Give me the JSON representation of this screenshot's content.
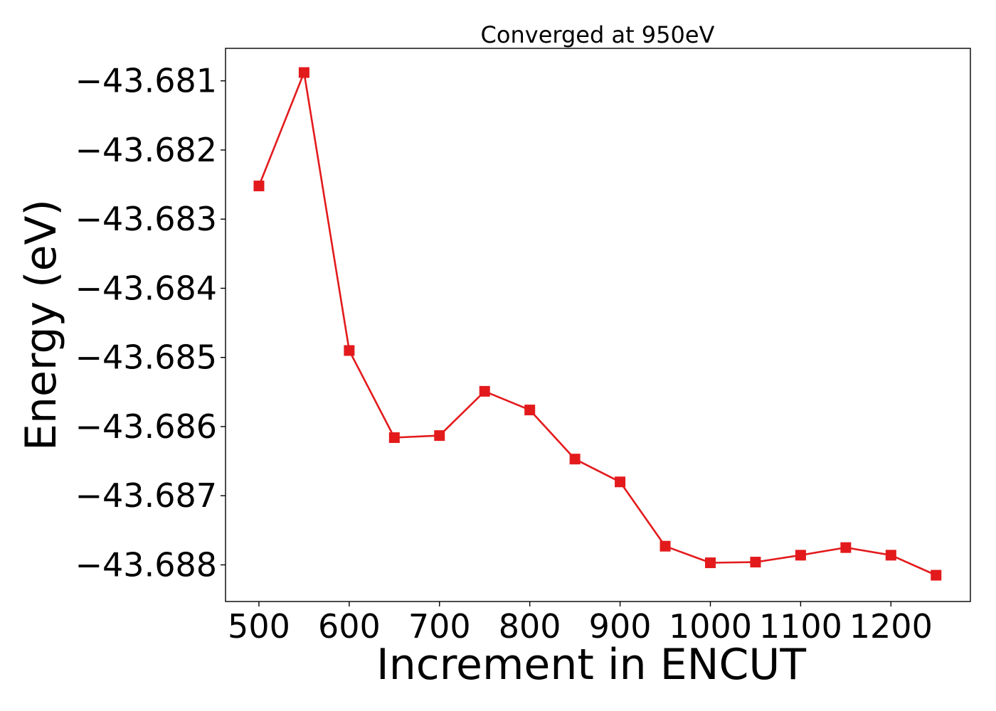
{
  "chart_data": {
    "type": "line",
    "title": "Converged at 950eV",
    "xlabel": "Increment in ENCUT",
    "ylabel": "Energy (eV)",
    "x": [
      500,
      550,
      600,
      650,
      700,
      750,
      800,
      850,
      900,
      950,
      1000,
      1050,
      1100,
      1150,
      1200,
      1250
    ],
    "series": [
      {
        "values": [
          -43.68252,
          -43.68088,
          -43.6849,
          -43.68616,
          -43.68613,
          -43.68549,
          -43.68576,
          -43.68647,
          -43.6868,
          -43.68773,
          -43.68797,
          -43.68796,
          -43.68786,
          -43.68775,
          -43.68786,
          -43.68815
        ],
        "color": "#e31a1c",
        "marker": "square"
      }
    ],
    "xlim": [
      463,
      1288
    ],
    "ylim": [
      -43.68853,
      -43.68053
    ],
    "xticks": [
      500,
      600,
      700,
      800,
      900,
      1000,
      1100,
      1200
    ],
    "xtick_labels": [
      "500",
      "600",
      "700",
      "800",
      "900",
      "1000",
      "1100",
      "1200"
    ],
    "yticks": [
      -43.681,
      -43.682,
      -43.683,
      -43.684,
      -43.685,
      -43.686,
      -43.687,
      -43.688
    ],
    "ytick_labels": [
      "−43.681",
      "−43.682",
      "−43.683",
      "−43.684",
      "−43.685",
      "−43.686",
      "−43.687",
      "−43.688"
    ],
    "grid": false,
    "legend": "none"
  }
}
